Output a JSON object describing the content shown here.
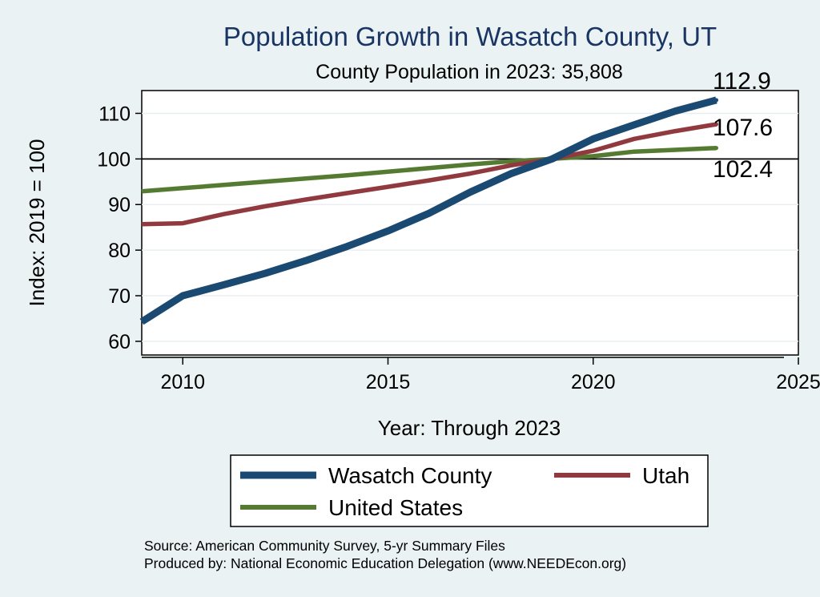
{
  "chart_data": {
    "type": "line",
    "title": "Population Growth in Wasatch County, UT",
    "subtitle": "County Population in 2023: 35,808",
    "xlabel": "Year: Through 2023",
    "ylabel": "Index: 2019 = 100",
    "xlim": [
      2009,
      2025
    ],
    "ylim": [
      57,
      115
    ],
    "xticks": [
      2010,
      2015,
      2020,
      2025
    ],
    "yticks": [
      60,
      70,
      80,
      90,
      100,
      110
    ],
    "reference_line": 100,
    "x": [
      2009,
      2010,
      2011,
      2012,
      2013,
      2014,
      2015,
      2016,
      2017,
      2018,
      2019,
      2020,
      2021,
      2022,
      2023
    ],
    "series": [
      {
        "name": "Wasatch  County",
        "color": "#1a4a72",
        "values": [
          64.3,
          70.0,
          72.4,
          74.9,
          77.7,
          80.8,
          84.2,
          88.1,
          92.7,
          96.8,
          100.0,
          104.4,
          107.5,
          110.5,
          112.9
        ],
        "end_label": "112.9"
      },
      {
        "name": "Utah",
        "color": "#903a40",
        "values": [
          85.7,
          85.9,
          87.9,
          89.6,
          91.1,
          92.5,
          93.9,
          95.3,
          96.8,
          98.6,
          100.0,
          101.8,
          104.4,
          106.1,
          107.6
        ],
        "end_label": "107.6"
      },
      {
        "name": "United States",
        "color": "#557a32",
        "values": [
          92.9,
          93.6,
          94.3,
          95.0,
          95.7,
          96.4,
          97.2,
          98.0,
          98.8,
          99.5,
          100.0,
          100.6,
          101.6,
          102.0,
          102.4
        ],
        "end_label": "102.4"
      }
    ],
    "legend_position": "bottom"
  },
  "footer": {
    "source": "Source: American Community Survey, 5-yr Summary Files",
    "produced_by": "Produced by: National Economic Education Delegation (www.NEEDEcon.org)"
  }
}
